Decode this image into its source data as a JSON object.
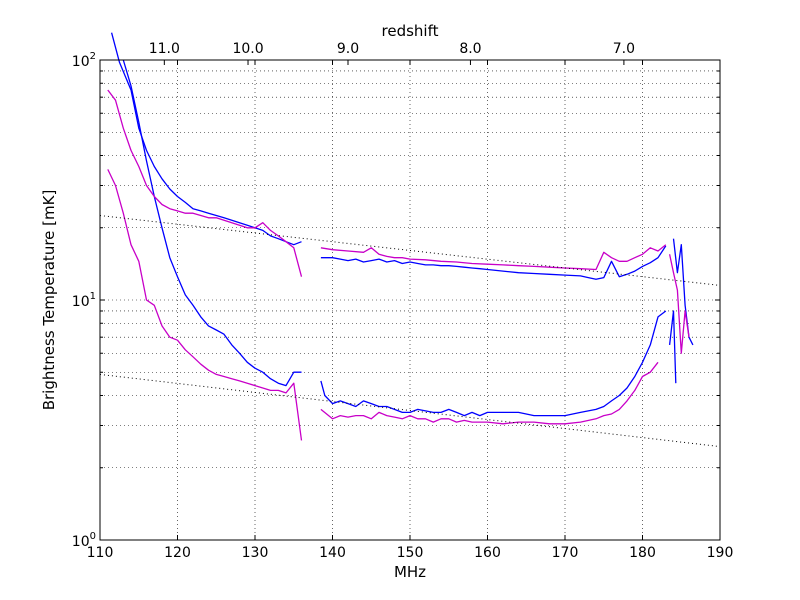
{
  "chart_data": {
    "type": "line",
    "xlabel": "MHz",
    "ylabel": "Brightness Temperature [mK]",
    "top_axis_label": "redshift",
    "x_ticks": [
      "110",
      "120",
      "130",
      "140",
      "150",
      "160",
      "170",
      "180",
      "190"
    ],
    "y_ticks": [
      "10",
      "10",
      "10"
    ],
    "y_tick_exponents": [
      "0",
      "1",
      "2"
    ],
    "xlim": [
      110,
      190
    ],
    "ylim": [
      1,
      100
    ],
    "y_scale": "log",
    "grid": true,
    "top_ticks": [
      {
        "label": "11.0",
        "x": 118.3
      },
      {
        "label": "10.0",
        "x": 129.1
      },
      {
        "label": "9.0",
        "x": 142.0
      },
      {
        "label": "8.0",
        "x": 157.8
      },
      {
        "label": "7.0",
        "x": 177.6
      }
    ],
    "series": [
      {
        "color": "#0000ff",
        "style": "solid",
        "x": [
          111.5,
          112.5,
          114,
          115,
          116,
          117,
          118,
          119,
          120,
          121,
          122,
          123,
          124,
          125,
          126,
          127,
          128,
          129,
          130,
          131,
          132,
          133,
          134,
          135,
          136
        ],
        "y": [
          130,
          98,
          75,
          52,
          42,
          36,
          32,
          29,
          27,
          25.5,
          24,
          23.5,
          23,
          22.5,
          22,
          21.5,
          21,
          20.5,
          20,
          19.5,
          18.5,
          18,
          17.5,
          17,
          17.5
        ]
      },
      {
        "color": "#0000ff",
        "style": "solid",
        "x": [
          138.5,
          140,
          141,
          142,
          143,
          144,
          145,
          146,
          147,
          148,
          149,
          150,
          151,
          152,
          153,
          154,
          155,
          156,
          157,
          158,
          159,
          160,
          162,
          164,
          166,
          168,
          170,
          172,
          173,
          174,
          175,
          176,
          177,
          178,
          179,
          180,
          181,
          182,
          183
        ],
        "y": [
          15,
          15,
          14.8,
          14.6,
          14.8,
          14.4,
          14.6,
          14.8,
          14.4,
          14.6,
          14.2,
          14.4,
          14.2,
          14,
          14,
          13.9,
          13.9,
          13.8,
          13.7,
          13.6,
          13.5,
          13.4,
          13.2,
          13,
          12.9,
          12.8,
          12.7,
          12.6,
          12.4,
          12.2,
          12.4,
          14.5,
          12.5,
          12.8,
          13.2,
          13.8,
          14.3,
          15,
          16.8
        ]
      },
      {
        "color": "#0000ff",
        "style": "solid",
        "x": [
          184,
          184.5,
          185,
          185.5,
          186,
          186.5
        ],
        "y": [
          18,
          13,
          17,
          9.5,
          7,
          6.5
        ]
      },
      {
        "color": "#0000ff",
        "style": "solid",
        "x": [
          113,
          114,
          115,
          116,
          117,
          118,
          119,
          120,
          121,
          122,
          123,
          124,
          125,
          126,
          127,
          128,
          129,
          130,
          131,
          132,
          133,
          134,
          135,
          136
        ],
        "y": [
          100,
          78,
          55,
          38,
          27,
          20,
          15,
          12.5,
          10.5,
          9.5,
          8.5,
          7.8,
          7.5,
          7.2,
          6.5,
          6,
          5.5,
          5.2,
          5,
          4.7,
          4.5,
          4.4,
          5,
          5
        ]
      },
      {
        "color": "#0000ff",
        "style": "solid",
        "x": [
          138.5,
          139,
          140,
          141,
          142,
          143,
          144,
          145,
          146,
          147,
          148,
          149,
          150,
          151,
          152,
          153,
          154,
          155,
          156,
          157,
          158,
          159,
          160,
          162,
          164,
          166,
          168,
          170,
          172,
          174,
          175,
          176,
          177,
          178,
          179,
          180,
          181,
          182,
          183
        ],
        "y": [
          4.6,
          4,
          3.7,
          3.8,
          3.7,
          3.6,
          3.8,
          3.7,
          3.6,
          3.6,
          3.5,
          3.4,
          3.4,
          3.5,
          3.45,
          3.4,
          3.4,
          3.5,
          3.4,
          3.3,
          3.4,
          3.3,
          3.4,
          3.4,
          3.4,
          3.3,
          3.3,
          3.3,
          3.4,
          3.5,
          3.6,
          3.8,
          4,
          4.3,
          4.8,
          5.5,
          6.5,
          8.5,
          9
        ]
      },
      {
        "color": "#0000ff",
        "style": "solid",
        "x": [
          183.5,
          184,
          184.3
        ],
        "y": [
          6.5,
          9,
          4.5
        ]
      },
      {
        "color": "#c800c8",
        "style": "solid",
        "x": [
          111,
          112,
          113,
          114,
          115,
          116,
          117,
          118,
          119,
          120,
          121,
          122,
          123,
          124,
          125,
          126,
          127,
          128,
          129,
          130,
          131,
          132,
          133,
          134,
          135,
          136
        ],
        "y": [
          75,
          68,
          52,
          42,
          36,
          30,
          27,
          25,
          24,
          23.5,
          23,
          23,
          22.5,
          22,
          22,
          21.5,
          21,
          20.5,
          20,
          20,
          21,
          19.5,
          18.5,
          17.5,
          16.5,
          12.5
        ]
      },
      {
        "color": "#c800c8",
        "style": "solid",
        "x": [
          138.5,
          140,
          142,
          144,
          145,
          146,
          147,
          148,
          149,
          150,
          152,
          154,
          156,
          158,
          160,
          162,
          164,
          166,
          168,
          170,
          172,
          174,
          175,
          176,
          177,
          178,
          179,
          180,
          181,
          182,
          183
        ],
        "y": [
          16.5,
          16.2,
          16,
          15.8,
          16.5,
          15.5,
          15.2,
          15,
          15,
          14.8,
          14.7,
          14.5,
          14.4,
          14.2,
          14.1,
          14,
          13.9,
          13.8,
          13.7,
          13.6,
          13.5,
          13.4,
          15.8,
          15,
          14.5,
          14.5,
          15,
          15.5,
          16.5,
          16,
          17
        ]
      },
      {
        "color": "#c800c8",
        "style": "solid",
        "x": [
          183.5,
          184,
          184.5,
          185,
          185.5,
          186
        ],
        "y": [
          15.5,
          13,
          11,
          6,
          9,
          7
        ]
      },
      {
        "color": "#c800c8",
        "style": "solid",
        "x": [
          111,
          112,
          113,
          114,
          115,
          116,
          117,
          118,
          119,
          120,
          121,
          122,
          123,
          124,
          125,
          126,
          127,
          128,
          129,
          130,
          131,
          132,
          133,
          134,
          135,
          136
        ],
        "y": [
          35,
          30,
          23,
          17,
          14.5,
          10,
          9.5,
          7.8,
          7,
          6.8,
          6.2,
          5.8,
          5.4,
          5.1,
          4.9,
          4.8,
          4.7,
          4.6,
          4.5,
          4.4,
          4.3,
          4.2,
          4.2,
          4.1,
          4.5,
          2.6
        ]
      },
      {
        "color": "#c800c8",
        "style": "solid",
        "x": [
          138.5,
          140,
          141,
          142,
          143,
          144,
          145,
          146,
          147,
          148,
          149,
          150,
          151,
          152,
          153,
          154,
          155,
          156,
          157,
          158,
          159,
          160,
          162,
          164,
          166,
          168,
          170,
          172,
          174,
          175,
          176,
          177,
          178,
          179,
          180,
          181,
          182
        ],
        "y": [
          3.5,
          3.2,
          3.3,
          3.25,
          3.3,
          3.3,
          3.2,
          3.4,
          3.3,
          3.25,
          3.2,
          3.3,
          3.2,
          3.2,
          3.1,
          3.2,
          3.2,
          3.1,
          3.15,
          3.1,
          3.1,
          3.1,
          3.05,
          3.1,
          3.1,
          3.05,
          3.05,
          3.1,
          3.2,
          3.3,
          3.35,
          3.5,
          3.8,
          4.2,
          4.8,
          5,
          5.5
        ]
      },
      {
        "color": "#000000",
        "style": "dotted",
        "x": [
          110,
          190
        ],
        "y": [
          22.5,
          11.5
        ]
      },
      {
        "color": "#000000",
        "style": "dotted",
        "x": [
          110,
          190
        ],
        "y": [
          4.9,
          2.45
        ]
      }
    ]
  }
}
